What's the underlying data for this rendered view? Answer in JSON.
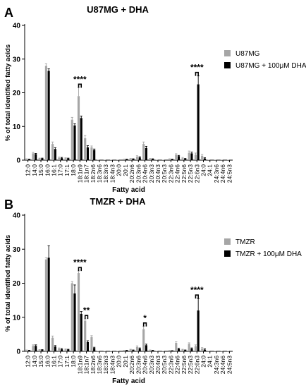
{
  "panel_letters": [
    "A",
    "B"
  ],
  "chart_data": [
    {
      "type": "bar",
      "title": "U87MG + DHA",
      "xlabel": "Fatty acid",
      "ylabel": "% of total identified fatty acids",
      "ylim": [
        0,
        40
      ],
      "yticks": [
        0,
        10,
        20,
        30,
        40
      ],
      "grid": false,
      "legend_position": "top-right",
      "categories": [
        "12:0",
        "14:0",
        "15:0",
        "16:0",
        "16:1",
        "17:0",
        "17:1",
        "18:0",
        "18:1n9",
        "18:1n7",
        "18:2n6",
        "18:3n6",
        "18:3n3",
        "18:4n3",
        "20:0",
        "20:1",
        "20:2n6",
        "20:3n6",
        "20:4n6",
        "20:3n3",
        "20:4n3",
        "20:5n3",
        "22:3n6",
        "22:4n6",
        "22:5n6",
        "22:5n3",
        "22:6n3",
        "24:0",
        "24:1",
        "24:3n6",
        "24:4n6",
        "24:5n3"
      ],
      "series": [
        {
          "name": "U87MG",
          "color": "#a6a6a6",
          "values": [
            0.3,
            2.0,
            0.5,
            28.0,
            4.8,
            0.7,
            0.6,
            12.0,
            19.0,
            6.5,
            3.8,
            0.1,
            0.1,
            0.1,
            0.1,
            0.2,
            0.4,
            1.0,
            4.8,
            0.4,
            0.1,
            0.1,
            0.3,
            1.6,
            0.6,
            2.2,
            1.6,
            1.3,
            0.1,
            0.1,
            0.1,
            0.1
          ],
          "errors": [
            0.1,
            0.3,
            0.1,
            0.6,
            0.6,
            0.2,
            0.1,
            0.7,
            2.5,
            0.8,
            0.4,
            0,
            0,
            0,
            0,
            0.1,
            0.1,
            0.3,
            0.6,
            0.1,
            0,
            0,
            0.1,
            0.3,
            0.2,
            0.5,
            0.5,
            0.4,
            0,
            0,
            0,
            0
          ]
        },
        {
          "name": "U87MG + 100μM DHA",
          "color": "#000000",
          "values": [
            0.2,
            1.8,
            0.5,
            26.5,
            3.3,
            0.6,
            0.5,
            10.3,
            12.5,
            3.8,
            3.0,
            0.1,
            0.1,
            0.1,
            0.1,
            0.2,
            0.3,
            0.8,
            3.6,
            0.3,
            0.1,
            0.1,
            0.2,
            1.2,
            0.4,
            2.0,
            22.5,
            0.5,
            0.1,
            0.1,
            0.1,
            0.1
          ],
          "errors": [
            0.1,
            0.2,
            0.1,
            0.6,
            0.4,
            0.2,
            0.1,
            0.5,
            0.6,
            0.5,
            0.3,
            0,
            0,
            0,
            0,
            0.1,
            0.1,
            0.2,
            0.5,
            0.1,
            0,
            0,
            0.1,
            0.2,
            0.1,
            0.4,
            2.5,
            0.2,
            0,
            0,
            0,
            0
          ]
        }
      ],
      "significance": [
        {
          "category": "18:1n9",
          "label": "****"
        },
        {
          "category": "22:6n3",
          "label": "****"
        }
      ]
    },
    {
      "type": "bar",
      "title": "TMZR + DHA",
      "xlabel": "Fatty acid",
      "ylabel": "% of total identified fatty acids",
      "ylim": [
        0,
        40
      ],
      "yticks": [
        0,
        10,
        20,
        30,
        40
      ],
      "grid": false,
      "legend_position": "top-right",
      "categories": [
        "12:0",
        "14:0",
        "15:0",
        "16:0",
        "16:1",
        "17:0",
        "17:1",
        "18:0",
        "18:1n9",
        "18:1n7",
        "18:2n6",
        "18:3n6",
        "18:3n3",
        "18:4n3",
        "20:0",
        "20:1",
        "20:2n6",
        "20:3n6",
        "20:4n6",
        "20:3n3",
        "20:4n3",
        "20:5n3",
        "22:3n6",
        "22:4n6",
        "22:5n6",
        "22:5n3",
        "22:6n3",
        "24:0",
        "24:1",
        "24:3n6",
        "24:4n6",
        "24:5n3"
      ],
      "series": [
        {
          "name": "TMZR",
          "color": "#a6a6a6",
          "values": [
            0.3,
            1.6,
            0.4,
            27.0,
            4.0,
            0.8,
            0.6,
            20.0,
            23.0,
            9.0,
            4.2,
            0.1,
            0.1,
            0.1,
            0.1,
            0.2,
            0.5,
            1.3,
            6.5,
            0.3,
            0.1,
            0.1,
            0.2,
            2.5,
            0.5,
            2.2,
            1.5,
            0.8,
            0.1,
            0.1,
            0.1,
            0.1
          ],
          "errors": [
            0.1,
            0.3,
            0.1,
            0.5,
            0.5,
            0.2,
            0.1,
            0.5,
            0.6,
            0.5,
            0.4,
            0,
            0,
            0,
            0,
            0.1,
            0.1,
            0.3,
            0.8,
            0.1,
            0,
            0,
            0.1,
            0.3,
            0.1,
            0.3,
            0.4,
            0.3,
            0,
            0,
            0,
            0
          ]
        },
        {
          "name": "TMZR + 100μM DHA",
          "color": "#000000",
          "values": [
            0.2,
            1.6,
            0.4,
            27.5,
            1.4,
            0.6,
            0.5,
            17.0,
            11.0,
            2.7,
            1.0,
            0.1,
            0.1,
            0.1,
            0.1,
            0.2,
            0.3,
            0.8,
            1.8,
            0.2,
            0.1,
            0.1,
            0.1,
            0.7,
            0.3,
            0.8,
            12.0,
            0.5,
            0.1,
            0.1,
            0.1,
            0.1
          ],
          "errors": [
            0.1,
            0.3,
            0.1,
            3.5,
            0.3,
            0.2,
            0.1,
            2.5,
            0.7,
            0.4,
            0.2,
            0,
            0,
            0,
            0,
            0.1,
            0.1,
            0.2,
            0.3,
            0.1,
            0,
            0,
            0.1,
            0.2,
            0.1,
            0.2,
            3.5,
            0.2,
            0,
            0,
            0,
            0
          ]
        }
      ],
      "significance": [
        {
          "category": "18:1n9",
          "label": "****"
        },
        {
          "category": "18:1n7",
          "label": "**"
        },
        {
          "category": "20:4n6",
          "label": "*"
        },
        {
          "category": "22:6n3",
          "label": "****"
        }
      ]
    }
  ]
}
